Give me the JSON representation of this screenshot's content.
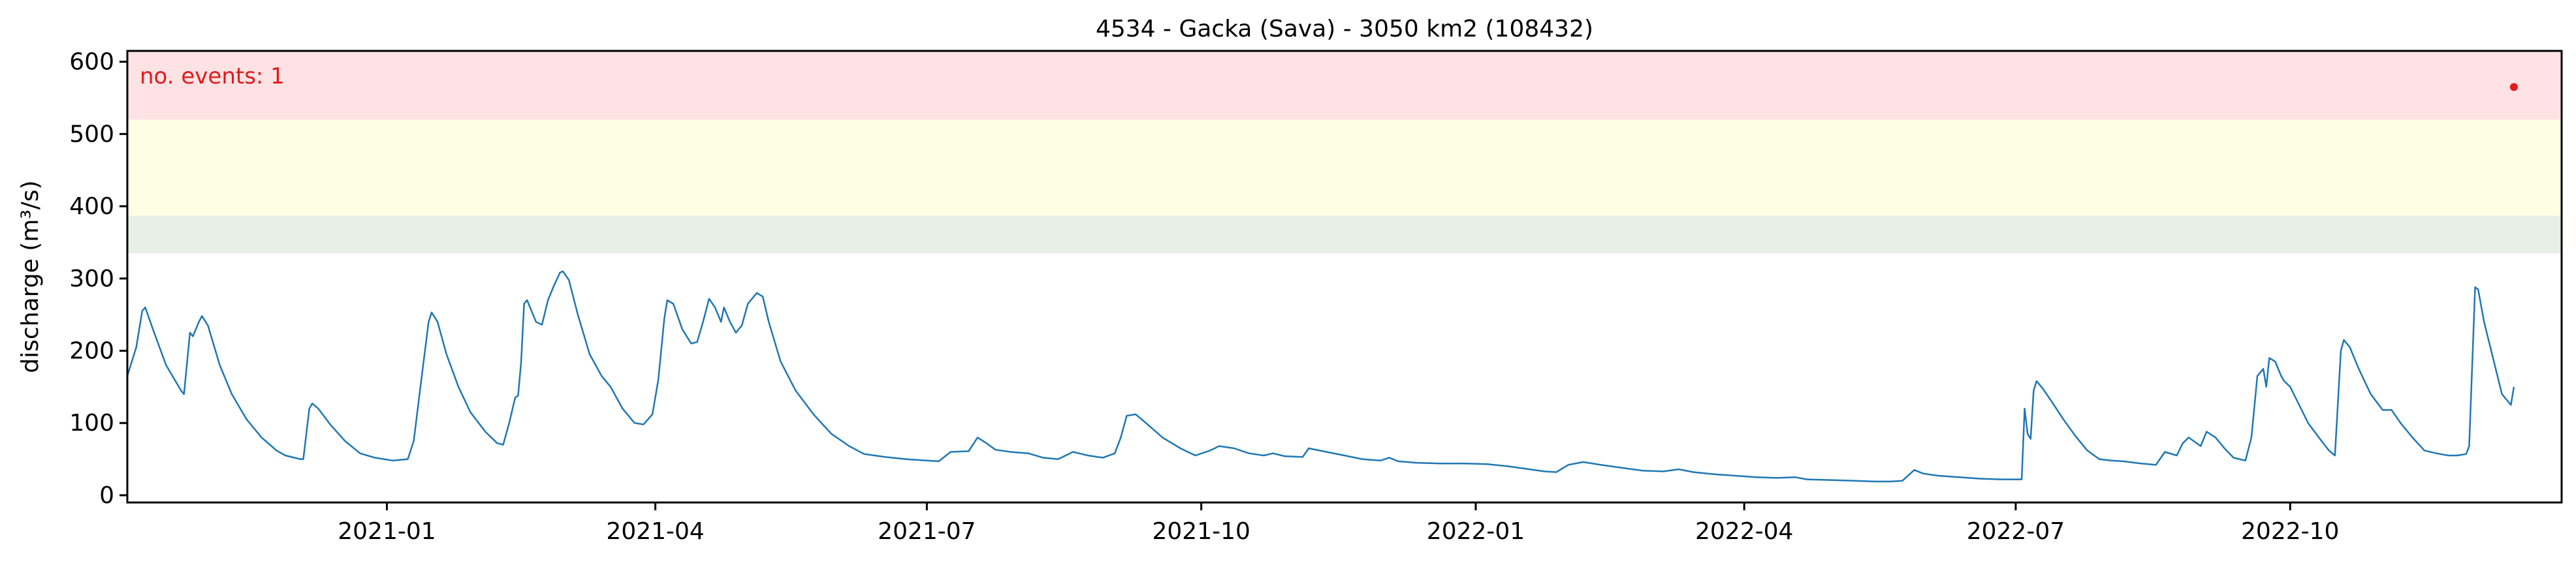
{
  "chart_data": {
    "type": "line",
    "title": "4534 - Gacka (Sava) - 3050 km2 (108432)",
    "xlabel": "",
    "ylabel": "discharge (m³/s)",
    "xlim": [
      "2020-10-06",
      "2022-12-31"
    ],
    "ylim": [
      -10,
      615
    ],
    "y_ticks": [
      0,
      100,
      200,
      300,
      400,
      500,
      600
    ],
    "x_ticks": [
      {
        "date": "2021-01-01",
        "label": "2021-01"
      },
      {
        "date": "2021-04-01",
        "label": "2021-04"
      },
      {
        "date": "2021-07-01",
        "label": "2021-07"
      },
      {
        "date": "2021-10-01",
        "label": "2021-10"
      },
      {
        "date": "2022-01-01",
        "label": "2022-01"
      },
      {
        "date": "2022-04-01",
        "label": "2022-04"
      },
      {
        "date": "2022-07-01",
        "label": "2022-07"
      },
      {
        "date": "2022-10-01",
        "label": "2022-10"
      }
    ],
    "grid": false,
    "threshold_bands": [
      {
        "from": 335,
        "to": 387,
        "color": "#e6f0e4"
      },
      {
        "from": 387,
        "to": 520,
        "color": "#fefee4"
      },
      {
        "from": 520,
        "to": 615,
        "color": "#fee2e4"
      }
    ],
    "annotation": {
      "text": "no. events: 1",
      "color": "#e31a1c"
    },
    "events": [
      {
        "date": "2022-12-15",
        "value": 565,
        "color": "#e31a1c"
      }
    ],
    "series": [
      {
        "color": "#1f77b4",
        "points": [
          [
            "2020-10-06",
            165
          ],
          [
            "2020-10-09",
            205
          ],
          [
            "2020-10-11",
            255
          ],
          [
            "2020-10-12",
            260
          ],
          [
            "2020-10-15",
            225
          ],
          [
            "2020-10-19",
            180
          ],
          [
            "2020-10-24",
            145
          ],
          [
            "2020-10-25",
            140
          ],
          [
            "2020-10-27",
            225
          ],
          [
            "2020-10-28",
            220
          ],
          [
            "2020-10-30",
            240
          ],
          [
            "2020-10-31",
            248
          ],
          [
            "2020-11-02",
            235
          ],
          [
            "2020-11-06",
            180
          ],
          [
            "2020-11-10",
            140
          ],
          [
            "2020-11-15",
            105
          ],
          [
            "2020-11-20",
            80
          ],
          [
            "2020-11-25",
            62
          ],
          [
            "2020-11-28",
            55
          ],
          [
            "2020-12-03",
            50
          ],
          [
            "2020-12-04",
            50
          ],
          [
            "2020-12-06",
            120
          ],
          [
            "2020-12-07",
            127
          ],
          [
            "2020-12-09",
            120
          ],
          [
            "2020-12-13",
            98
          ],
          [
            "2020-12-18",
            75
          ],
          [
            "2020-12-23",
            58
          ],
          [
            "2020-12-28",
            52
          ],
          [
            "2021-01-03",
            48
          ],
          [
            "2021-01-08",
            50
          ],
          [
            "2021-01-10",
            75
          ],
          [
            "2021-01-13",
            175
          ],
          [
            "2021-01-15",
            240
          ],
          [
            "2021-01-16",
            253
          ],
          [
            "2021-01-18",
            240
          ],
          [
            "2021-01-21",
            195
          ],
          [
            "2021-01-25",
            150
          ],
          [
            "2021-01-29",
            115
          ],
          [
            "2021-02-03",
            88
          ],
          [
            "2021-02-07",
            72
          ],
          [
            "2021-02-09",
            70
          ],
          [
            "2021-02-11",
            100
          ],
          [
            "2021-02-13",
            135
          ],
          [
            "2021-02-14",
            138
          ],
          [
            "2021-02-15",
            185
          ],
          [
            "2021-02-16",
            265
          ],
          [
            "2021-02-17",
            270
          ],
          [
            "2021-02-20",
            240
          ],
          [
            "2021-02-22",
            236
          ],
          [
            "2021-02-24",
            270
          ],
          [
            "2021-02-25",
            280
          ],
          [
            "2021-02-26",
            290
          ],
          [
            "2021-02-28",
            308
          ],
          [
            "2021-03-01",
            310
          ],
          [
            "2021-03-03",
            298
          ],
          [
            "2021-03-06",
            250
          ],
          [
            "2021-03-10",
            195
          ],
          [
            "2021-03-14",
            165
          ],
          [
            "2021-03-17",
            150
          ],
          [
            "2021-03-21",
            120
          ],
          [
            "2021-03-25",
            100
          ],
          [
            "2021-03-28",
            98
          ],
          [
            "2021-03-31",
            112
          ],
          [
            "2021-04-02",
            160
          ],
          [
            "2021-04-04",
            245
          ],
          [
            "2021-04-05",
            270
          ],
          [
            "2021-04-07",
            265
          ],
          [
            "2021-04-10",
            230
          ],
          [
            "2021-04-13",
            210
          ],
          [
            "2021-04-15",
            212
          ],
          [
            "2021-04-17",
            240
          ],
          [
            "2021-04-19",
            272
          ],
          [
            "2021-04-21",
            260
          ],
          [
            "2021-04-23",
            240
          ],
          [
            "2021-04-24",
            260
          ],
          [
            "2021-04-26",
            240
          ],
          [
            "2021-04-28",
            225
          ],
          [
            "2021-04-30",
            235
          ],
          [
            "2021-05-02",
            265
          ],
          [
            "2021-05-05",
            280
          ],
          [
            "2021-05-07",
            275
          ],
          [
            "2021-05-09",
            240
          ],
          [
            "2021-05-13",
            185
          ],
          [
            "2021-05-18",
            145
          ],
          [
            "2021-05-24",
            112
          ],
          [
            "2021-05-30",
            85
          ],
          [
            "2021-06-05",
            68
          ],
          [
            "2021-06-10",
            57
          ],
          [
            "2021-06-17",
            53
          ],
          [
            "2021-06-24",
            50
          ],
          [
            "2021-07-01",
            48
          ],
          [
            "2021-07-05",
            47
          ],
          [
            "2021-07-09",
            60
          ],
          [
            "2021-07-15",
            61
          ],
          [
            "2021-07-18",
            80
          ],
          [
            "2021-07-21",
            72
          ],
          [
            "2021-07-24",
            63
          ],
          [
            "2021-07-29",
            60
          ],
          [
            "2021-08-04",
            58
          ],
          [
            "2021-08-09",
            52
          ],
          [
            "2021-08-14",
            50
          ],
          [
            "2021-08-19",
            60
          ],
          [
            "2021-08-24",
            55
          ],
          [
            "2021-08-29",
            52
          ],
          [
            "2021-09-02",
            58
          ],
          [
            "2021-09-04",
            80
          ],
          [
            "2021-09-06",
            110
          ],
          [
            "2021-09-09",
            112
          ],
          [
            "2021-09-13",
            98
          ],
          [
            "2021-09-18",
            80
          ],
          [
            "2021-09-24",
            65
          ],
          [
            "2021-09-29",
            55
          ],
          [
            "2021-10-04",
            62
          ],
          [
            "2021-10-07",
            68
          ],
          [
            "2021-10-12",
            65
          ],
          [
            "2021-10-17",
            58
          ],
          [
            "2021-10-22",
            55
          ],
          [
            "2021-10-25",
            58
          ],
          [
            "2021-10-29",
            54
          ],
          [
            "2021-11-04",
            53
          ],
          [
            "2021-11-06",
            65
          ],
          [
            "2021-11-12",
            60
          ],
          [
            "2021-11-18",
            55
          ],
          [
            "2021-11-24",
            50
          ],
          [
            "2021-11-30",
            48
          ],
          [
            "2021-12-03",
            52
          ],
          [
            "2021-12-06",
            47
          ],
          [
            "2021-12-12",
            45
          ],
          [
            "2021-12-20",
            44
          ],
          [
            "2021-12-28",
            44
          ],
          [
            "2022-01-05",
            43
          ],
          [
            "2022-01-12",
            40
          ],
          [
            "2022-01-19",
            36
          ],
          [
            "2022-01-24",
            33
          ],
          [
            "2022-01-28",
            32
          ],
          [
            "2022-02-01",
            42
          ],
          [
            "2022-02-06",
            46
          ],
          [
            "2022-02-12",
            42
          ],
          [
            "2022-02-19",
            38
          ],
          [
            "2022-02-26",
            34
          ],
          [
            "2022-03-05",
            33
          ],
          [
            "2022-03-10",
            36
          ],
          [
            "2022-03-15",
            32
          ],
          [
            "2022-03-22",
            29
          ],
          [
            "2022-03-29",
            27
          ],
          [
            "2022-04-05",
            25
          ],
          [
            "2022-04-12",
            24
          ],
          [
            "2022-04-18",
            25
          ],
          [
            "2022-04-22",
            22
          ],
          [
            "2022-05-01",
            21
          ],
          [
            "2022-05-08",
            20
          ],
          [
            "2022-05-15",
            19
          ],
          [
            "2022-05-20",
            19
          ],
          [
            "2022-05-24",
            20
          ],
          [
            "2022-05-28",
            35
          ],
          [
            "2022-05-31",
            30
          ],
          [
            "2022-06-05",
            27
          ],
          [
            "2022-06-12",
            25
          ],
          [
            "2022-06-19",
            23
          ],
          [
            "2022-06-26",
            22
          ],
          [
            "2022-07-03",
            22
          ],
          [
            "2022-07-04",
            120
          ],
          [
            "2022-07-05",
            85
          ],
          [
            "2022-07-06",
            78
          ],
          [
            "2022-07-07",
            145
          ],
          [
            "2022-07-08",
            158
          ],
          [
            "2022-07-10",
            148
          ],
          [
            "2022-07-13",
            130
          ],
          [
            "2022-07-17",
            105
          ],
          [
            "2022-07-21",
            82
          ],
          [
            "2022-07-25",
            62
          ],
          [
            "2022-07-29",
            50
          ],
          [
            "2022-08-02",
            48
          ],
          [
            "2022-08-06",
            47
          ],
          [
            "2022-08-12",
            44
          ],
          [
            "2022-08-17",
            42
          ],
          [
            "2022-08-20",
            60
          ],
          [
            "2022-08-24",
            55
          ],
          [
            "2022-08-26",
            72
          ],
          [
            "2022-08-28",
            80
          ],
          [
            "2022-09-01",
            68
          ],
          [
            "2022-09-03",
            88
          ],
          [
            "2022-09-06",
            80
          ],
          [
            "2022-09-09",
            65
          ],
          [
            "2022-09-12",
            52
          ],
          [
            "2022-09-16",
            48
          ],
          [
            "2022-09-18",
            80
          ],
          [
            "2022-09-20",
            165
          ],
          [
            "2022-09-22",
            175
          ],
          [
            "2022-09-23",
            150
          ],
          [
            "2022-09-24",
            190
          ],
          [
            "2022-09-26",
            185
          ],
          [
            "2022-09-28",
            165
          ],
          [
            "2022-09-29",
            158
          ],
          [
            "2022-10-01",
            150
          ],
          [
            "2022-10-04",
            125
          ],
          [
            "2022-10-07",
            100
          ],
          [
            "2022-10-11",
            78
          ],
          [
            "2022-10-14",
            62
          ],
          [
            "2022-10-16",
            55
          ],
          [
            "2022-10-18",
            200
          ],
          [
            "2022-10-19",
            215
          ],
          [
            "2022-10-21",
            205
          ],
          [
            "2022-10-24",
            175
          ],
          [
            "2022-10-28",
            140
          ],
          [
            "2022-11-01",
            118
          ],
          [
            "2022-11-04",
            118
          ],
          [
            "2022-11-07",
            100
          ],
          [
            "2022-11-11",
            80
          ],
          [
            "2022-11-15",
            62
          ],
          [
            "2022-11-19",
            58
          ],
          [
            "2022-11-23",
            55
          ],
          [
            "2022-11-26",
            55
          ],
          [
            "2022-11-29",
            57
          ],
          [
            "2022-11-30",
            68
          ],
          [
            "2022-12-02",
            288
          ],
          [
            "2022-12-03",
            285
          ],
          [
            "2022-12-05",
            240
          ],
          [
            "2022-12-08",
            190
          ],
          [
            "2022-12-11",
            140
          ],
          [
            "2022-12-14",
            125
          ],
          [
            "2022-12-15",
            150
          ]
        ]
      }
    ]
  }
}
